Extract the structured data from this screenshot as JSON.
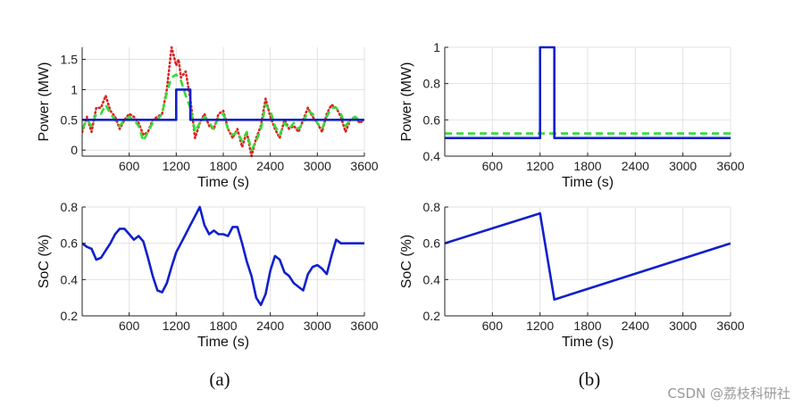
{
  "chart_data": [
    {
      "id": "a_power",
      "type": "line",
      "xlabel": "Time (s)",
      "ylabel": "Power (MW)",
      "xlim": [
        0,
        3600
      ],
      "ylim": [
        -0.1,
        1.7
      ],
      "xticks": [
        600,
        1200,
        1800,
        2400,
        3000,
        3600
      ],
      "yticks": [
        0,
        0.5,
        1,
        1.5
      ],
      "ytick_labels": [
        "0",
        "0.5",
        "1",
        "1.5"
      ],
      "series": [
        {
          "name": "dotted-red",
          "color": "#dd2222",
          "style": "dotted",
          "x": [
            0,
            60,
            120,
            180,
            240,
            300,
            360,
            420,
            480,
            540,
            600,
            660,
            720,
            780,
            840,
            900,
            960,
            1020,
            1080,
            1140,
            1200,
            1230,
            1260,
            1320,
            1380,
            1440,
            1500,
            1560,
            1620,
            1680,
            1740,
            1800,
            1860,
            1920,
            1980,
            2040,
            2100,
            2160,
            2220,
            2280,
            2340,
            2400,
            2460,
            2520,
            2580,
            2640,
            2700,
            2760,
            2820,
            2880,
            2940,
            3000,
            3060,
            3120,
            3180,
            3240,
            3300,
            3360,
            3420,
            3480,
            3540,
            3600
          ],
          "y": [
            0.3,
            0.55,
            0.3,
            0.7,
            0.7,
            0.9,
            0.65,
            0.55,
            0.35,
            0.5,
            0.6,
            0.55,
            0.45,
            0.25,
            0.3,
            0.5,
            0.55,
            0.6,
            1.0,
            1.7,
            1.4,
            1.5,
            1.2,
            1.3,
            0.85,
            0.2,
            0.45,
            0.6,
            0.4,
            0.35,
            0.6,
            0.65,
            0.35,
            0.2,
            0.35,
            0.05,
            0.3,
            -0.1,
            0.2,
            0.4,
            0.85,
            0.55,
            0.35,
            0.2,
            0.5,
            0.35,
            0.4,
            0.3,
            0.5,
            0.7,
            0.55,
            0.45,
            0.3,
            0.6,
            0.75,
            0.7,
            0.55,
            0.3,
            0.5,
            0.55,
            0.45,
            0.5
          ]
        },
        {
          "name": "dashed-green",
          "color": "#33dd33",
          "style": "dashed",
          "x": [
            0,
            60,
            120,
            180,
            240,
            300,
            360,
            420,
            480,
            540,
            600,
            660,
            720,
            780,
            840,
            900,
            960,
            1020,
            1080,
            1140,
            1200,
            1260,
            1320,
            1380,
            1440,
            1500,
            1560,
            1620,
            1680,
            1740,
            1800,
            1860,
            1920,
            1980,
            2040,
            2100,
            2160,
            2220,
            2280,
            2340,
            2400,
            2460,
            2520,
            2580,
            2640,
            2700,
            2760,
            2820,
            2880,
            2940,
            3000,
            3060,
            3120,
            3180,
            3240,
            3300,
            3360,
            3420,
            3480,
            3540,
            3600
          ],
          "y": [
            0.35,
            0.5,
            0.4,
            0.6,
            0.6,
            0.75,
            0.6,
            0.5,
            0.4,
            0.5,
            0.55,
            0.5,
            0.4,
            0.15,
            0.3,
            0.45,
            0.5,
            0.6,
            0.95,
            1.2,
            1.25,
            1.15,
            0.9,
            0.7,
            0.3,
            0.45,
            0.55,
            0.45,
            0.35,
            0.55,
            0.6,
            0.35,
            0.25,
            0.3,
            0.15,
            0.3,
            0.0,
            0.15,
            0.35,
            0.75,
            0.65,
            0.4,
            0.25,
            0.45,
            0.35,
            0.45,
            0.35,
            0.45,
            0.65,
            0.6,
            0.45,
            0.35,
            0.55,
            0.7,
            0.7,
            0.6,
            0.4,
            0.5,
            0.55,
            0.5,
            0.5
          ]
        },
        {
          "name": "solid-blue",
          "color": "#1020cc",
          "style": "solid",
          "x": [
            0,
            1200,
            1200,
            1380,
            1380,
            3600
          ],
          "y": [
            0.5,
            0.5,
            1.0,
            1.0,
            0.5,
            0.5
          ]
        }
      ]
    },
    {
      "id": "b_power",
      "type": "line",
      "xlabel": "Time (s)",
      "ylabel": "Power (MW)",
      "xlim": [
        0,
        3600
      ],
      "ylim": [
        0.4,
        1.0
      ],
      "xticks": [
        600,
        1200,
        1800,
        2400,
        3000,
        3600
      ],
      "yticks": [
        0.4,
        0.6,
        0.8,
        1.0
      ],
      "ytick_labels": [
        "0.4",
        "0.6",
        "0.8",
        "1"
      ],
      "series": [
        {
          "name": "dashed-green",
          "color": "#33dd33",
          "style": "dashed",
          "x": [
            0,
            3600
          ],
          "y": [
            0.525,
            0.525
          ]
        },
        {
          "name": "solid-blue",
          "color": "#1020cc",
          "style": "solid",
          "x": [
            0,
            1200,
            1200,
            1380,
            1380,
            3600
          ],
          "y": [
            0.5,
            0.5,
            1.0,
            1.0,
            0.5,
            0.5
          ]
        }
      ]
    },
    {
      "id": "a_soc",
      "type": "line",
      "xlabel": "Time (s)",
      "ylabel": "SoC (%)",
      "xlim": [
        0,
        3600
      ],
      "ylim": [
        0.2,
        0.8
      ],
      "xticks": [
        600,
        1200,
        1800,
        2400,
        3000,
        3600
      ],
      "yticks": [
        0.2,
        0.4,
        0.6,
        0.8
      ],
      "ytick_labels": [
        "0.2",
        "0.4",
        "0.6",
        "0.8"
      ],
      "series": [
        {
          "name": "solid-blue",
          "color": "#1020cc",
          "style": "solid",
          "x": [
            0,
            60,
            120,
            180,
            240,
            300,
            360,
            420,
            480,
            540,
            600,
            660,
            720,
            780,
            840,
            900,
            960,
            1020,
            1080,
            1140,
            1200,
            1260,
            1320,
            1380,
            1440,
            1500,
            1560,
            1620,
            1680,
            1740,
            1800,
            1860,
            1920,
            1980,
            2040,
            2100,
            2160,
            2220,
            2280,
            2340,
            2400,
            2460,
            2520,
            2580,
            2640,
            2700,
            2760,
            2820,
            2880,
            2940,
            3000,
            3060,
            3120,
            3180,
            3240,
            3300,
            3360,
            3420,
            3480,
            3540,
            3600
          ],
          "y": [
            0.6,
            0.58,
            0.57,
            0.51,
            0.52,
            0.56,
            0.6,
            0.65,
            0.68,
            0.68,
            0.65,
            0.62,
            0.64,
            0.61,
            0.52,
            0.42,
            0.34,
            0.33,
            0.38,
            0.47,
            0.55,
            0.6,
            0.65,
            0.7,
            0.75,
            0.8,
            0.7,
            0.65,
            0.67,
            0.65,
            0.65,
            0.64,
            0.69,
            0.69,
            0.6,
            0.5,
            0.42,
            0.3,
            0.26,
            0.32,
            0.45,
            0.53,
            0.51,
            0.44,
            0.42,
            0.38,
            0.36,
            0.34,
            0.43,
            0.47,
            0.48,
            0.46,
            0.43,
            0.53,
            0.62,
            0.6,
            0.6,
            0.6,
            0.6,
            0.6,
            0.6
          ]
        }
      ]
    },
    {
      "id": "b_soc",
      "type": "line",
      "xlabel": "Time (s)",
      "ylabel": "SoC (%)",
      "xlim": [
        0,
        3600
      ],
      "ylim": [
        0.2,
        0.8
      ],
      "xticks": [
        600,
        1200,
        1800,
        2400,
        3000,
        3600
      ],
      "yticks": [
        0.2,
        0.4,
        0.6,
        0.8
      ],
      "ytick_labels": [
        "0.2",
        "0.4",
        "0.6",
        "0.8"
      ],
      "series": [
        {
          "name": "solid-blue",
          "color": "#1020cc",
          "style": "solid",
          "x": [
            0,
            1200,
            1380,
            3600
          ],
          "y": [
            0.6,
            0.765,
            0.29,
            0.6
          ]
        }
      ]
    }
  ],
  "captions": {
    "a": "(a)",
    "b": "(b)"
  },
  "watermark": "CSDN @荔枝科研社"
}
